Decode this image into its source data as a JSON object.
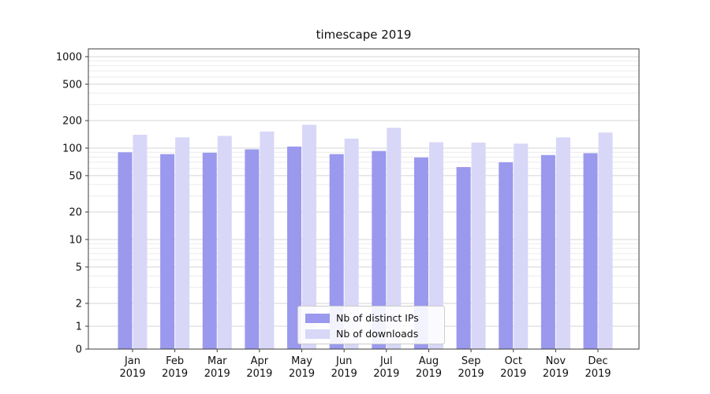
{
  "chart_data": {
    "type": "bar",
    "title": "timescape 2019",
    "categories": [
      "Jan",
      "Feb",
      "Mar",
      "Apr",
      "May",
      "Jun",
      "Jul",
      "Aug",
      "Sep",
      "Oct",
      "Nov",
      "Dec"
    ],
    "category_year": "2019",
    "series": [
      {
        "name": "Nb of distinct IPs",
        "color": "#9a99ee",
        "values": [
          90,
          86,
          89,
          97,
          104,
          86,
          93,
          79,
          62,
          70,
          84,
          88
        ]
      },
      {
        "name": "Nb of downloads",
        "color": "#d8d7f7",
        "values": [
          140,
          131,
          136,
          152,
          180,
          127,
          167,
          116,
          115,
          112,
          131,
          148
        ]
      }
    ],
    "yscale": "symlog",
    "yticks": [
      0,
      1,
      2,
      5,
      10,
      20,
      50,
      100,
      200,
      500,
      1000
    ],
    "yticks_minor": [
      3,
      4,
      6,
      7,
      8,
      9,
      30,
      40,
      60,
      70,
      80,
      90,
      300,
      400,
      600,
      700,
      800,
      900
    ],
    "ylim": [
      0,
      1000
    ],
    "xlabel": "",
    "ylabel": "",
    "grid": true,
    "legend_position": "lower center"
  },
  "colors": {
    "grid_major": "#d4d4d4",
    "grid_minor": "#ebebeb",
    "spine": "#3c3c3c",
    "tick": "#3c3c3c",
    "text": "#111111",
    "background": "#ffffff",
    "legend_border": "#cccccc"
  }
}
